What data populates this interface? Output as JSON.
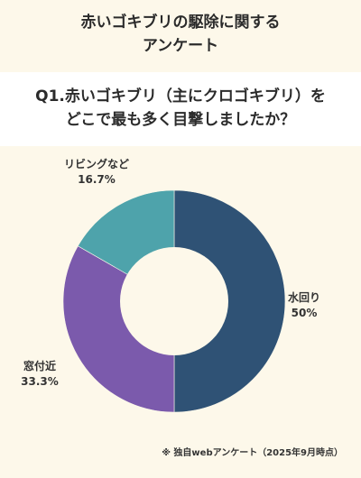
{
  "header": {
    "title_line1": "赤いゴキブリの駆除に関する",
    "title_line2": "アンケート"
  },
  "question": {
    "line1": "Q1.赤いゴキブリ（主にクロゴキブリ）を",
    "line2": "どこで最も多く目撃しましたか？"
  },
  "chart_data": {
    "type": "pie",
    "donut": true,
    "categories": [
      "水回り",
      "窓付近",
      "リビングなど"
    ],
    "values": [
      50,
      33.3,
      16.7
    ],
    "value_labels": [
      "50%",
      "33.3%",
      "16.7%"
    ],
    "colors": [
      "#2f5275",
      "#7b5aac",
      "#4ea3ab"
    ]
  },
  "footnote": "※ 独自webアンケート（2025年9月時点）"
}
